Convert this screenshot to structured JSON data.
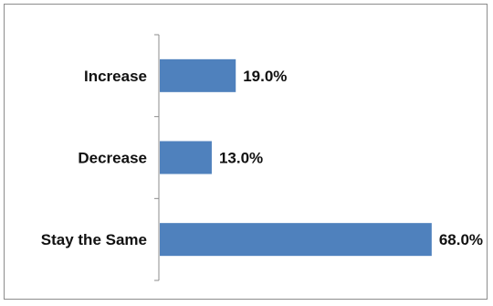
{
  "chart_data": {
    "type": "bar",
    "orientation": "horizontal",
    "categories": [
      "Increase",
      "Decrease",
      "Stay the Same"
    ],
    "values": [
      19.0,
      13.0,
      68.0
    ],
    "value_labels": [
      "19.0%",
      "13.0%",
      "68.0%"
    ],
    "unit": "%",
    "title": "",
    "xlabel": "",
    "ylabel": "",
    "xlim": [
      0,
      70
    ],
    "grid": false,
    "legend": "none",
    "bar_color": "#4f81bd"
  }
}
